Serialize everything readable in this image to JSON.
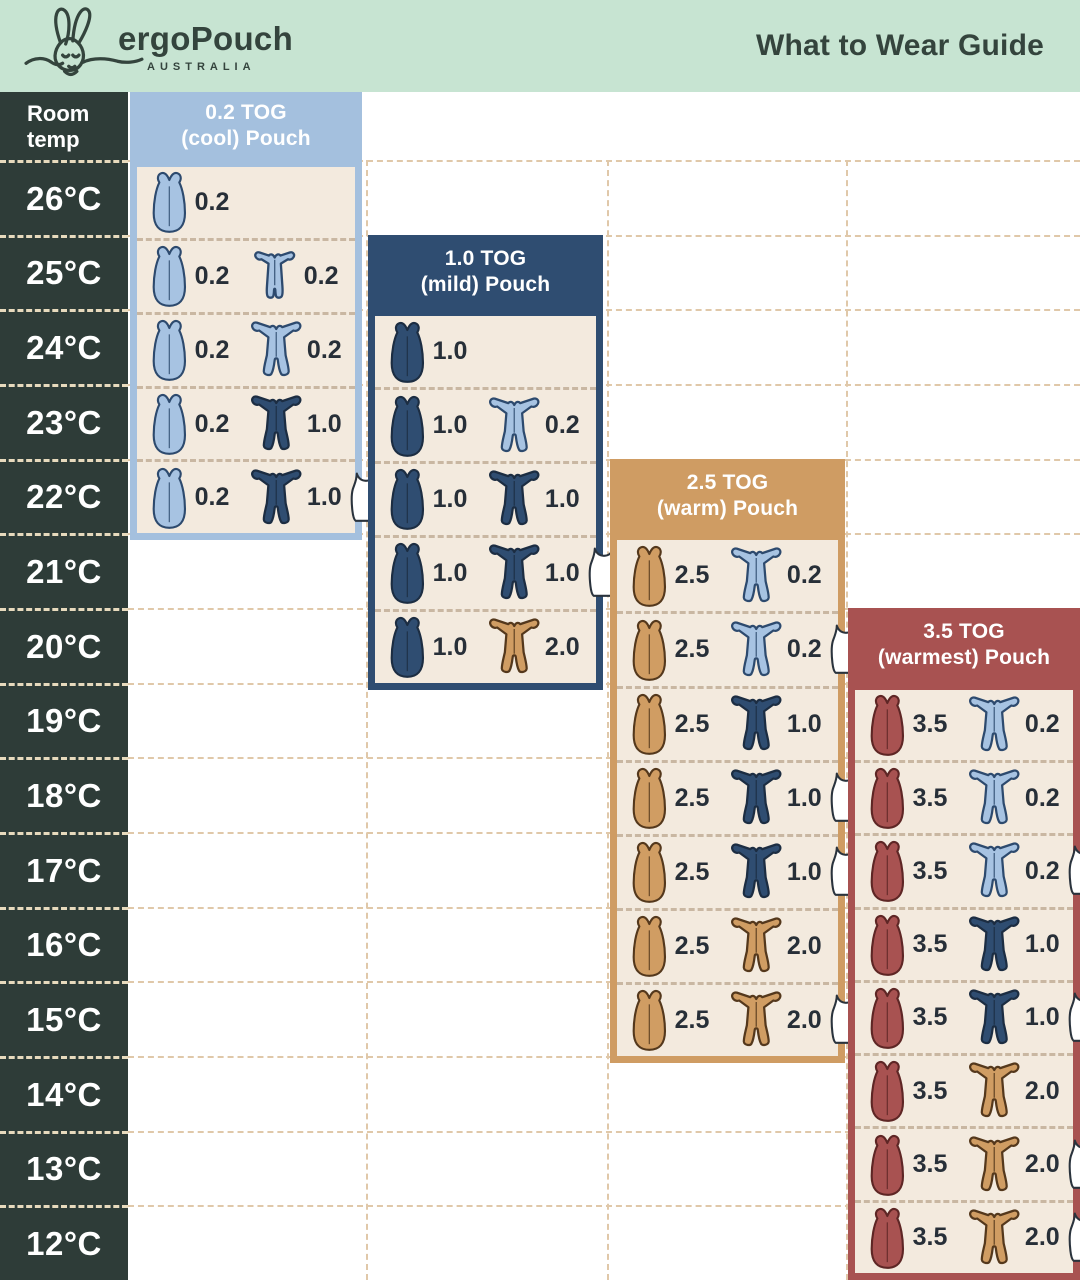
{
  "header": {
    "brand": "ergoPouch",
    "brand_sub": "AUSTRALIA",
    "title": "What to Wear Guide"
  },
  "table": {
    "corner_label": "Room temp",
    "temps": [
      "26°C",
      "25°C",
      "24°C",
      "23°C",
      "22°C",
      "21°C",
      "20°C",
      "19°C",
      "18°C",
      "17°C",
      "16°C",
      "15°C",
      "14°C",
      "13°C",
      "12°C"
    ]
  },
  "panels": [
    {
      "id": "0-2-tog",
      "theme": "cool",
      "title": "0.2 TOG",
      "subtitle": "(cool) Pouch",
      "rows": [
        {
          "temp": "26°C",
          "items": [
            {
              "icon": "pouch",
              "color": "lightblue",
              "tog": "0.2"
            }
          ]
        },
        {
          "temp": "25°C",
          "items": [
            {
              "icon": "pouch",
              "color": "lightblue",
              "tog": "0.2"
            },
            {
              "icon": "romper",
              "color": "lightblue",
              "tog": "0.2"
            }
          ]
        },
        {
          "temp": "24°C",
          "items": [
            {
              "icon": "pouch",
              "color": "lightblue",
              "tog": "0.2"
            },
            {
              "icon": "sleepsuit",
              "color": "lightblue",
              "tog": "0.2"
            }
          ]
        },
        {
          "temp": "23°C",
          "items": [
            {
              "icon": "pouch",
              "color": "lightblue",
              "tog": "0.2"
            },
            {
              "icon": "sleepsuit",
              "color": "navy",
              "tog": "1.0"
            }
          ]
        },
        {
          "temp": "22°C",
          "items": [
            {
              "icon": "pouch",
              "color": "lightblue",
              "tog": "0.2"
            },
            {
              "icon": "sleepsuit",
              "color": "navy",
              "tog": "1.0"
            },
            {
              "icon": "singlet",
              "color": "white"
            }
          ]
        }
      ]
    },
    {
      "id": "1-0-tog",
      "theme": "mild",
      "title": "1.0 TOG",
      "subtitle": "(mild) Pouch",
      "rows": [
        {
          "temp": "24°C",
          "items": [
            {
              "icon": "pouch",
              "color": "navy",
              "tog": "1.0"
            }
          ]
        },
        {
          "temp": "23°C",
          "items": [
            {
              "icon": "pouch",
              "color": "navy",
              "tog": "1.0"
            },
            {
              "icon": "sleepsuit",
              "color": "lightblue",
              "tog": "0.2"
            }
          ]
        },
        {
          "temp": "22°C",
          "items": [
            {
              "icon": "pouch",
              "color": "navy",
              "tog": "1.0"
            },
            {
              "icon": "sleepsuit",
              "color": "navy",
              "tog": "1.0"
            }
          ]
        },
        {
          "temp": "21°C",
          "items": [
            {
              "icon": "pouch",
              "color": "navy",
              "tog": "1.0"
            },
            {
              "icon": "sleepsuit",
              "color": "navy",
              "tog": "1.0"
            },
            {
              "icon": "singlet",
              "color": "white"
            }
          ]
        },
        {
          "temp": "20°C",
          "items": [
            {
              "icon": "pouch",
              "color": "navy",
              "tog": "1.0"
            },
            {
              "icon": "sleepsuit",
              "color": "tan",
              "tog": "2.0"
            }
          ]
        }
      ]
    },
    {
      "id": "2-5-tog",
      "theme": "warm",
      "title": "2.5 TOG",
      "subtitle": "(warm) Pouch",
      "rows": [
        {
          "temp": "21°C",
          "items": [
            {
              "icon": "pouch",
              "color": "tan",
              "tog": "2.5"
            },
            {
              "icon": "sleepsuit",
              "color": "lightblue",
              "tog": "0.2"
            }
          ]
        },
        {
          "temp": "20°C",
          "items": [
            {
              "icon": "pouch",
              "color": "tan",
              "tog": "2.5"
            },
            {
              "icon": "sleepsuit",
              "color": "lightblue",
              "tog": "0.2"
            },
            {
              "icon": "singlet",
              "color": "white"
            }
          ]
        },
        {
          "temp": "19°C",
          "items": [
            {
              "icon": "pouch",
              "color": "tan",
              "tog": "2.5"
            },
            {
              "icon": "sleepsuit",
              "color": "navy",
              "tog": "1.0"
            }
          ]
        },
        {
          "temp": "18°C",
          "items": [
            {
              "icon": "pouch",
              "color": "tan",
              "tog": "2.5"
            },
            {
              "icon": "sleepsuit",
              "color": "navy",
              "tog": "1.0"
            },
            {
              "icon": "singlet",
              "color": "white"
            }
          ]
        },
        {
          "temp": "17°C",
          "items": [
            {
              "icon": "pouch",
              "color": "tan",
              "tog": "2.5"
            },
            {
              "icon": "sleepsuit",
              "color": "navy",
              "tog": "1.0"
            },
            {
              "icon": "singlet",
              "color": "white"
            }
          ]
        },
        {
          "temp": "16°C",
          "items": [
            {
              "icon": "pouch",
              "color": "tan",
              "tog": "2.5"
            },
            {
              "icon": "sleepsuit",
              "color": "tan",
              "tog": "2.0"
            }
          ]
        },
        {
          "temp": "15°C",
          "items": [
            {
              "icon": "pouch",
              "color": "tan",
              "tog": "2.5"
            },
            {
              "icon": "sleepsuit",
              "color": "tan",
              "tog": "2.0"
            },
            {
              "icon": "singlet",
              "color": "white"
            }
          ]
        }
      ]
    },
    {
      "id": "3-5-tog",
      "theme": "warmest",
      "title": "3.5 TOG",
      "subtitle": "(warmest) Pouch",
      "rows": [
        {
          "temp": "19°C",
          "items": [
            {
              "icon": "pouch",
              "color": "red",
              "tog": "3.5"
            },
            {
              "icon": "sleepsuit",
              "color": "lightblue",
              "tog": "0.2"
            }
          ]
        },
        {
          "temp": "18°C",
          "items": [
            {
              "icon": "pouch",
              "color": "red",
              "tog": "3.5"
            },
            {
              "icon": "sleepsuit",
              "color": "lightblue",
              "tog": "0.2"
            }
          ]
        },
        {
          "temp": "17°C",
          "items": [
            {
              "icon": "pouch",
              "color": "red",
              "tog": "3.5"
            },
            {
              "icon": "sleepsuit",
              "color": "lightblue",
              "tog": "0.2"
            },
            {
              "icon": "singlet",
              "color": "white"
            }
          ]
        },
        {
          "temp": "16°C",
          "items": [
            {
              "icon": "pouch",
              "color": "red",
              "tog": "3.5"
            },
            {
              "icon": "sleepsuit",
              "color": "navy",
              "tog": "1.0"
            }
          ]
        },
        {
          "temp": "15°C",
          "items": [
            {
              "icon": "pouch",
              "color": "red",
              "tog": "3.5"
            },
            {
              "icon": "sleepsuit",
              "color": "navy",
              "tog": "1.0"
            },
            {
              "icon": "singlet",
              "color": "white"
            }
          ]
        },
        {
          "temp": "14°C",
          "items": [
            {
              "icon": "pouch",
              "color": "red",
              "tog": "3.5"
            },
            {
              "icon": "sleepsuit",
              "color": "tan",
              "tog": "2.0"
            }
          ]
        },
        {
          "temp": "13°C",
          "items": [
            {
              "icon": "pouch",
              "color": "red",
              "tog": "3.5"
            },
            {
              "icon": "sleepsuit",
              "color": "tan",
              "tog": "2.0"
            },
            {
              "icon": "singlet",
              "color": "white"
            }
          ]
        },
        {
          "temp": "12°C",
          "items": [
            {
              "icon": "pouch",
              "color": "red",
              "tog": "3.5"
            },
            {
              "icon": "sleepsuit",
              "color": "tan",
              "tog": "2.0"
            },
            {
              "icon": "singlet",
              "color": "white"
            }
          ]
        }
      ]
    }
  ],
  "chart_data": {
    "type": "table",
    "title": "What to Wear Guide",
    "row_header": "Room temp",
    "row_labels": [
      "26°C",
      "25°C",
      "24°C",
      "23°C",
      "22°C",
      "21°C",
      "20°C",
      "19°C",
      "18°C",
      "17°C",
      "16°C",
      "15°C",
      "14°C",
      "13°C",
      "12°C"
    ],
    "column_labels": [
      "0.2 TOG (cool) Pouch",
      "1.0 TOG (mild) Pouch",
      "2.5 TOG (warm) Pouch",
      "3.5 TOG (warmest) Pouch"
    ],
    "cells": {
      "0.2 TOG (cool) Pouch": {
        "26°C": "0.2 pouch",
        "25°C": "0.2 pouch + 0.2 short-sleeve romper",
        "24°C": "0.2 pouch + 0.2 sleepsuit",
        "23°C": "0.2 pouch + 1.0 sleepsuit",
        "22°C": "0.2 pouch + 1.0 sleepsuit + singlet"
      },
      "1.0 TOG (mild) Pouch": {
        "24°C": "1.0 pouch",
        "23°C": "1.0 pouch + 0.2 sleepsuit",
        "22°C": "1.0 pouch + 1.0 sleepsuit",
        "21°C": "1.0 pouch + 1.0 sleepsuit + singlet",
        "20°C": "1.0 pouch + 2.0 sleepsuit"
      },
      "2.5 TOG (warm) Pouch": {
        "21°C": "2.5 pouch + 0.2 sleepsuit",
        "20°C": "2.5 pouch + 0.2 sleepsuit + singlet",
        "19°C": "2.5 pouch + 1.0 sleepsuit",
        "18°C": "2.5 pouch + 1.0 sleepsuit + singlet",
        "17°C": "2.5 pouch + 1.0 sleepsuit + singlet",
        "16°C": "2.5 pouch + 2.0 sleepsuit",
        "15°C": "2.5 pouch + 2.0 sleepsuit + singlet"
      },
      "3.5 TOG (warmest) Pouch": {
        "19°C": "3.5 pouch + 0.2 sleepsuit",
        "18°C": "3.5 pouch + 0.2 sleepsuit",
        "17°C": "3.5 pouch + 0.2 sleepsuit + singlet",
        "16°C": "3.5 pouch + 1.0 sleepsuit",
        "15°C": "3.5 pouch + 1.0 sleepsuit + singlet",
        "14°C": "3.5 pouch + 2.0 sleepsuit",
        "13°C": "3.5 pouch + 2.0 sleepsuit + singlet",
        "12°C": "3.5 pouch + 2.0 sleepsuit + singlet"
      }
    }
  },
  "palette": {
    "banner": "#c7e4d2",
    "ink": "#34443d",
    "col": "#2e3c38",
    "cream": "#f3eade",
    "cool": "#a4c0de",
    "mild": "#2f4d71",
    "warm": "#cf9c63",
    "warmest": "#a85251",
    "val": "#272f38",
    "rowdiv": "#c9b7a2",
    "grid": "#e0c8a9",
    "tempdiv": "#e7dabd",
    "icon_lightblue": "#a7c3e2",
    "icon_navy": "#2f4d71",
    "icon_tan": "#d09d63",
    "icon_red": "#a85251",
    "outline_blue": "#2d4a6e",
    "outline_navy": "#1c2d42",
    "outline_tan": "#54381c",
    "outline_red": "#5e2625",
    "outline_dark": "#2a333d"
  }
}
